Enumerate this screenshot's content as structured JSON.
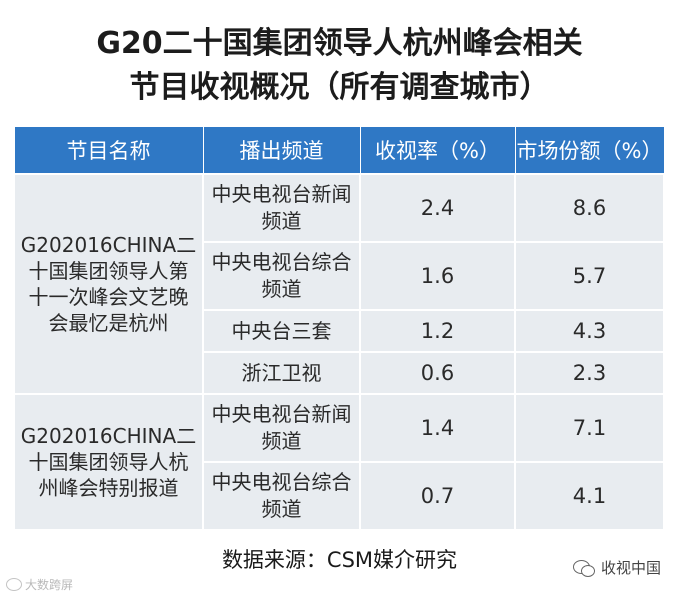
{
  "title": {
    "line1": "G20二十国集团领导人杭州峰会相关",
    "line2": "节目收视概况（所有调查城市）"
  },
  "table": {
    "headers": [
      "节目名称",
      "播出频道",
      "收视率（%）",
      "市场份额（%）"
    ],
    "programs": [
      {
        "name": "G202016CHINA二十国集团领导人第十一次峰会文艺晚会最忆是杭州",
        "rows": [
          {
            "channel": "中央电视台新闻频道",
            "rating": "2.4",
            "share": "8.6"
          },
          {
            "channel": "中央电视台综合频道",
            "rating": "1.6",
            "share": "5.7"
          },
          {
            "channel": "中央台三套",
            "rating": "1.2",
            "share": "4.3"
          },
          {
            "channel": "浙江卫视",
            "rating": "0.6",
            "share": "2.3"
          }
        ]
      },
      {
        "name": "G202016CHINA二十国集团领导人杭州峰会特别报道",
        "rows": [
          {
            "channel": "中央电视台新闻频道",
            "rating": "1.4",
            "share": "7.1"
          },
          {
            "channel": "中央电视台综合频道",
            "rating": "0.7",
            "share": "4.1"
          }
        ]
      }
    ]
  },
  "source": "数据来源：CSM媒介研究",
  "watermark_left": "大数跨屏",
  "watermark_right": "收视中国"
}
